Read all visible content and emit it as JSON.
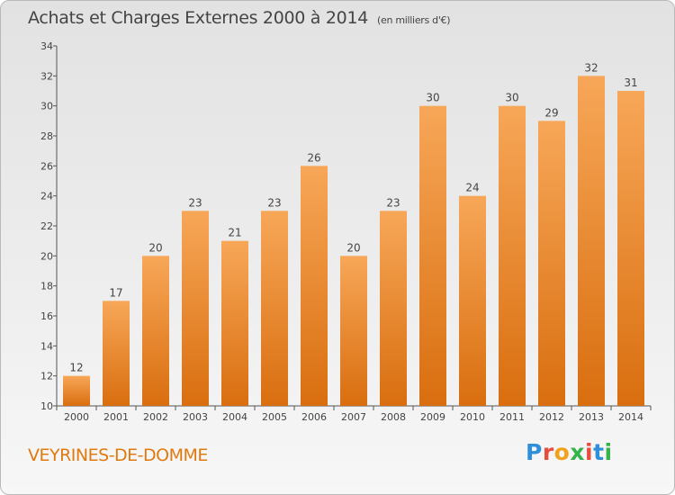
{
  "header": {
    "title": "Achats et Charges Externes 2000 à 2014",
    "unit": "(en milliers d'€)"
  },
  "footer": {
    "commune": "VEYRINES-DE-DOMME",
    "brand": "Proxiti"
  },
  "colors": {
    "bar_light": "#f7a758",
    "bar_dark": "#d96e0f",
    "axis": "#555555",
    "brand_text": "#e07a10"
  },
  "chart_data": {
    "type": "bar",
    "title": "Achats et Charges Externes 2000 à 2014",
    "subtitle": "(en milliers d'€)",
    "xlabel": "",
    "ylabel": "",
    "categories": [
      "2000",
      "2001",
      "2002",
      "2003",
      "2004",
      "2005",
      "2006",
      "2007",
      "2008",
      "2009",
      "2010",
      "2011",
      "2012",
      "2013",
      "2014"
    ],
    "values": [
      12,
      17,
      20,
      23,
      21,
      23,
      26,
      20,
      23,
      30,
      24,
      30,
      29,
      32,
      31
    ],
    "ylim": [
      10,
      34
    ],
    "yticks": [
      "10",
      "12",
      "14",
      "16",
      "18",
      "20",
      "22",
      "24",
      "26",
      "28",
      "30",
      "32",
      "34"
    ],
    "grid": false,
    "data_labels": true
  }
}
